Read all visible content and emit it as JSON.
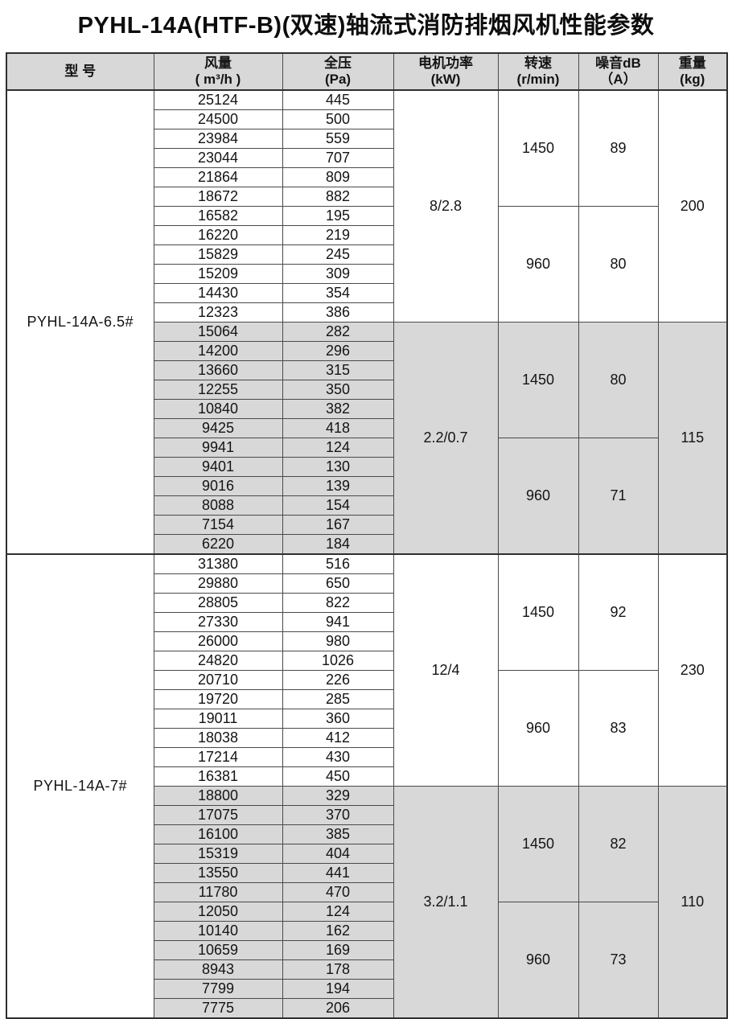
{
  "title": "PYHL-14A(HTF-B)(双速)轴流式消防排烟风机性能参数",
  "colors": {
    "shaded_row_bg": "#d8d8d8",
    "header_bg": "#d8d8d8",
    "border": "#4a4a4a",
    "outer_border": "#2f2f2f",
    "text": "#141414"
  },
  "table": {
    "headers": {
      "model": [
        "型 号"
      ],
      "flow": [
        "风量",
        "( m³/h )"
      ],
      "pressure": [
        "全压",
        "(Pa)"
      ],
      "power": [
        "电机功率",
        "(kW)"
      ],
      "speed": [
        "转速",
        "(r/min)"
      ],
      "noise": [
        "噪音dB",
        "（A）"
      ],
      "weight": [
        "重量",
        "(kg)"
      ]
    },
    "models": [
      {
        "name": "PYHL-14A-6.5#",
        "blocks": [
          {
            "shaded": false,
            "power": "8/2.8",
            "weight": "200",
            "speed_groups": [
              {
                "speed": "1450",
                "noise": "89",
                "rows": [
                  [
                    25124,
                    445
                  ],
                  [
                    24500,
                    500
                  ],
                  [
                    23984,
                    559
                  ],
                  [
                    23044,
                    707
                  ],
                  [
                    21864,
                    809
                  ],
                  [
                    18672,
                    882
                  ]
                ]
              },
              {
                "speed": "960",
                "noise": "80",
                "rows": [
                  [
                    16582,
                    195
                  ],
                  [
                    16220,
                    219
                  ],
                  [
                    15829,
                    245
                  ],
                  [
                    15209,
                    309
                  ],
                  [
                    14430,
                    354
                  ],
                  [
                    12323,
                    386
                  ]
                ]
              }
            ]
          },
          {
            "shaded": true,
            "power": "2.2/0.7",
            "weight": "115",
            "speed_groups": [
              {
                "speed": "1450",
                "noise": "80",
                "rows": [
                  [
                    15064,
                    282
                  ],
                  [
                    14200,
                    296
                  ],
                  [
                    13660,
                    315
                  ],
                  [
                    12255,
                    350
                  ],
                  [
                    10840,
                    382
                  ],
                  [
                    9425,
                    418
                  ]
                ]
              },
              {
                "speed": "960",
                "noise": "71",
                "rows": [
                  [
                    9941,
                    124
                  ],
                  [
                    9401,
                    130
                  ],
                  [
                    9016,
                    139
                  ],
                  [
                    8088,
                    154
                  ],
                  [
                    7154,
                    167
                  ],
                  [
                    6220,
                    184
                  ]
                ]
              }
            ]
          }
        ]
      },
      {
        "name": "PYHL-14A-7#",
        "blocks": [
          {
            "shaded": false,
            "power": "12/4",
            "weight": "230",
            "speed_groups": [
              {
                "speed": "1450",
                "noise": "92",
                "rows": [
                  [
                    31380,
                    516
                  ],
                  [
                    29880,
                    650
                  ],
                  [
                    28805,
                    822
                  ],
                  [
                    27330,
                    941
                  ],
                  [
                    26000,
                    980
                  ],
                  [
                    24820,
                    1026
                  ]
                ]
              },
              {
                "speed": "960",
                "noise": "83",
                "rows": [
                  [
                    20710,
                    226
                  ],
                  [
                    19720,
                    285
                  ],
                  [
                    19011,
                    360
                  ],
                  [
                    18038,
                    412
                  ],
                  [
                    17214,
                    430
                  ],
                  [
                    16381,
                    450
                  ]
                ]
              }
            ]
          },
          {
            "shaded": true,
            "power": "3.2/1.1",
            "weight": "110",
            "speed_groups": [
              {
                "speed": "1450",
                "noise": "82",
                "rows": [
                  [
                    18800,
                    329
                  ],
                  [
                    17075,
                    370
                  ],
                  [
                    16100,
                    385
                  ],
                  [
                    15319,
                    404
                  ],
                  [
                    13550,
                    441
                  ],
                  [
                    11780,
                    470
                  ]
                ]
              },
              {
                "speed": "960",
                "noise": "73",
                "rows": [
                  [
                    12050,
                    124
                  ],
                  [
                    10140,
                    162
                  ],
                  [
                    10659,
                    169
                  ],
                  [
                    8943,
                    178
                  ],
                  [
                    7799,
                    194
                  ],
                  [
                    7775,
                    206
                  ]
                ]
              }
            ]
          }
        ]
      }
    ]
  }
}
